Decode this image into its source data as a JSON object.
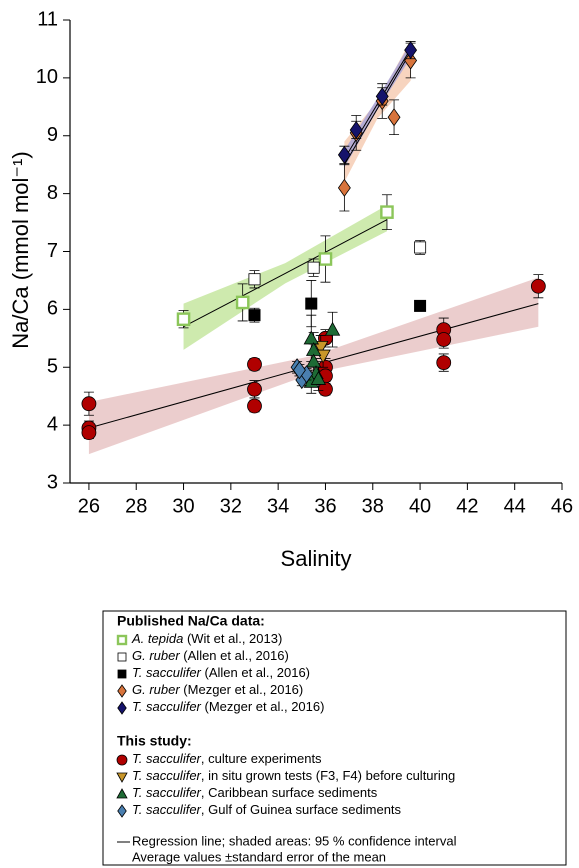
{
  "chart_data": {
    "type": "scatter",
    "x_label": "Salinity",
    "y_label": "Na/Ca (mmol mol⁻¹)",
    "xlim": [
      25.2,
      46
    ],
    "ylim": [
      3,
      11
    ],
    "xticks": [
      26,
      28,
      30,
      32,
      34,
      36,
      38,
      40,
      42,
      44,
      46
    ],
    "yticks": [
      3,
      4,
      5,
      6,
      7,
      8,
      9,
      10,
      11
    ],
    "legend": {
      "headings": [
        "Published Na/Ca data:",
        "This study:"
      ],
      "notes": [
        "Regression line; shaded areas: 95 % confidence interval",
        "Average values ±standard error of the mean"
      ]
    },
    "regressions": [
      {
        "color": "#000000",
        "band_color": "#c6e6a0",
        "x": [
          30,
          34.3,
          38.6
        ],
        "y": [
          5.7,
          6.62,
          7.55
        ],
        "band_lower": [
          5.3,
          6.45,
          7.35
        ],
        "band_upper": [
          6.1,
          6.8,
          7.8
        ]
      },
      {
        "color": "#000000",
        "band_color": "#e8c4c4",
        "x": [
          26,
          35.5,
          45
        ],
        "y": [
          3.95,
          5.03,
          6.1
        ],
        "band_lower": [
          3.5,
          4.9,
          5.7
        ],
        "band_upper": [
          4.4,
          5.2,
          6.55
        ]
      },
      {
        "color": "#000000",
        "band_color": "#f6cdb4",
        "x": [
          36.8,
          38.2,
          39.6
        ],
        "y": [
          8.5,
          9.47,
          10.45
        ],
        "band_lower": [
          8.2,
          9.3,
          9.95
        ],
        "band_upper": [
          8.9,
          9.6,
          10.65
        ]
      },
      {
        "color": "#000000",
        "band_color": "#a9a3d6",
        "x": [
          36.8,
          38.2,
          39.6
        ],
        "y": [
          8.6,
          9.55,
          10.5
        ],
        "band_lower": [
          8.45,
          9.45,
          10.35
        ],
        "band_upper": [
          8.75,
          9.65,
          10.6
        ]
      }
    ],
    "series": [
      {
        "name": "A. tepida",
        "source": " (Wit et al., 2013)",
        "group": 0,
        "marker": "square-dot",
        "color": "#8cc65a",
        "x": [
          30,
          32.5,
          36,
          38.6
        ],
        "values": [
          5.83,
          6.12,
          6.87,
          7.68
        ],
        "errors": [
          0.15,
          0.32,
          0.4,
          0.3
        ]
      },
      {
        "name": "G. ruber",
        "source": " (Allen et al., 2016)",
        "group": 0,
        "marker": "square",
        "color": "#ffffff",
        "x": [
          33,
          35.5,
          40
        ],
        "values": [
          6.52,
          6.72,
          7.07
        ],
        "errors": [
          0.15,
          0.15,
          0.12
        ]
      },
      {
        "name": "T. sacculifer",
        "source": " (Allen et al., 2016)",
        "group": 0,
        "marker": "square",
        "color": "#000000",
        "x": [
          33,
          35.4,
          40
        ],
        "values": [
          5.9,
          6.1,
          6.06
        ],
        "errors": [
          0.12,
          0.4,
          0.08
        ]
      },
      {
        "name": "G. ruber",
        "source": " (Mezger et al., 2016)",
        "group": 0,
        "marker": "diamond",
        "color": "#d8743c",
        "x": [
          36.8,
          37.3,
          38.4,
          38.9,
          39.6
        ],
        "values": [
          8.1,
          9.05,
          9.6,
          9.32,
          10.3
        ],
        "errors": [
          0.4,
          0.3,
          0.3,
          0.3,
          0.3
        ]
      },
      {
        "name": "T. sacculifer",
        "source": " (Mezger et al., 2016)",
        "group": 0,
        "marker": "diamond",
        "color": "#15136b",
        "x": [
          36.8,
          37.3,
          38.4,
          39.6
        ],
        "values": [
          8.67,
          9.1,
          9.68,
          10.48
        ],
        "errors": [
          0.15,
          0.15,
          0.15,
          0.15
        ]
      },
      {
        "name": "T. sacculifer",
        "source": ", culture experiments",
        "group": 1,
        "marker": "circle",
        "color": "#b00000",
        "x": [
          26,
          26,
          26,
          33,
          33,
          33,
          36,
          36,
          36,
          36,
          41,
          41,
          41,
          45
        ],
        "values": [
          4.37,
          3.95,
          3.87,
          5.05,
          4.62,
          4.33,
          5.5,
          5.0,
          4.85,
          4.62,
          5.65,
          5.48,
          5.08,
          6.4
        ],
        "errors": [
          0.2,
          0.12,
          0.1,
          0.1,
          0.15,
          0.1,
          0.15,
          0.15,
          0.1,
          0.1,
          0.2,
          0.15,
          0.15,
          0.2
        ]
      },
      {
        "name": "T. sacculifer",
        "source": ",  in situ grown tests (F3, F4) before culturing",
        "group": 1,
        "marker": "triangle-down",
        "color": "#c8962a",
        "x": [
          35.8,
          35.9
        ],
        "values": [
          5.35,
          5.2
        ],
        "errors": [
          0.2,
          0.2
        ]
      },
      {
        "name": "T. sacculifer",
        "source": ", Caribbean surface sediments",
        "group": 1,
        "marker": "triangle-up",
        "color": "#1e6b35",
        "x": [
          35.4,
          35.5,
          35.5,
          35.6,
          35.4,
          36.3,
          35.7
        ],
        "values": [
          5.5,
          5.3,
          5.1,
          4.9,
          4.75,
          5.65,
          4.8
        ],
        "errors": [
          0.4,
          0.3,
          0.3,
          0.2,
          0.2,
          0.3,
          0.2
        ]
      },
      {
        "name": "T. sacculifer",
        "source": ", Gulf of Guinea surface sediments",
        "group": 1,
        "marker": "diamond",
        "color": "#4a7fb0",
        "x": [
          34.8,
          35.0,
          35.2,
          34.9
        ],
        "values": [
          5.0,
          4.78,
          4.88,
          4.95
        ],
        "errors": [
          0.1,
          0.1,
          0.1,
          0.1
        ]
      }
    ]
  }
}
